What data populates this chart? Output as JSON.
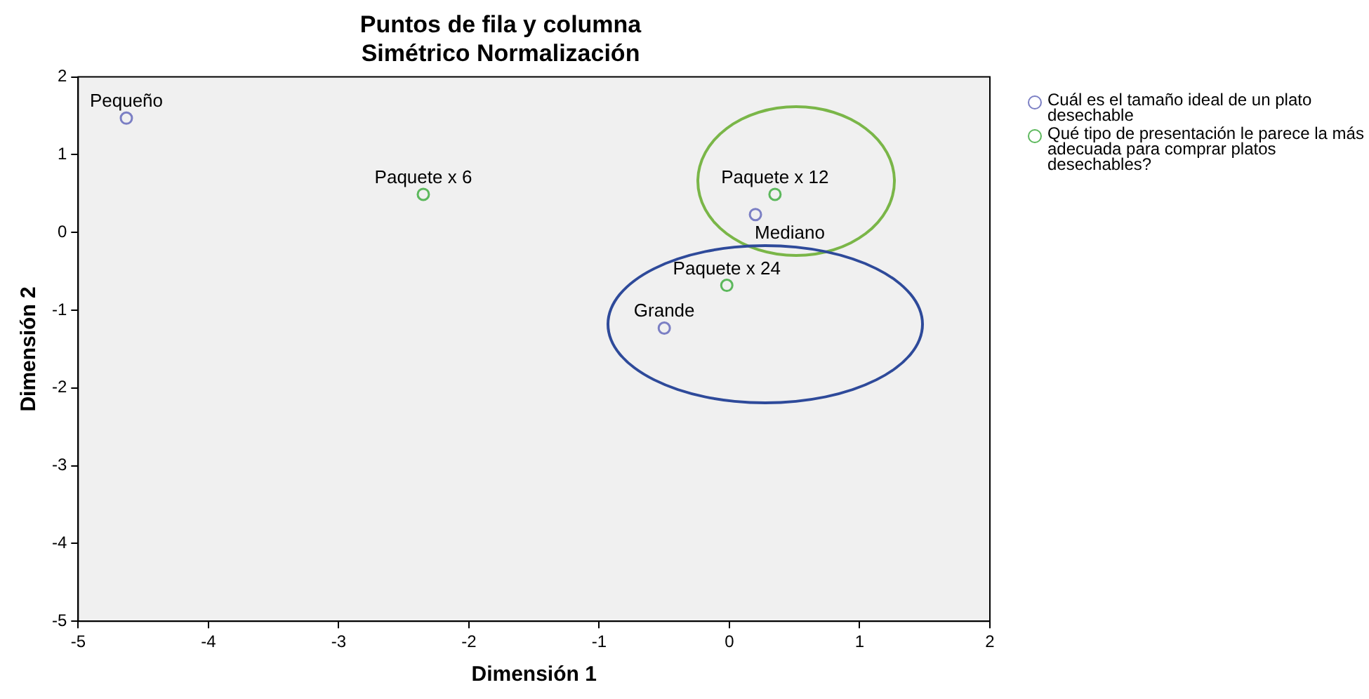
{
  "chart_data": {
    "type": "scatter",
    "title": "Puntos de fila y columna",
    "subtitle": "Simétrico Normalización",
    "xlabel": "Dimensión 1",
    "ylabel": "Dimensión 2",
    "series": [
      {
        "name": "Cuál es el tamaño ideal de un plato desechable",
        "color": "#7b7fc4",
        "x": [
          -4.63,
          0.2,
          -0.5
        ],
        "values": [
          1.47,
          0.23,
          -1.23
        ]
      },
      {
        "name": "Qué tipo de presentación le parece la más adecuada para comprar platos desechables?",
        "color": "#5cb85c",
        "x": [
          -2.35,
          0.35,
          -0.02
        ],
        "values": [
          0.49,
          0.49,
          -0.68
        ]
      }
    ],
    "annotations": [
      {
        "text": "Pequeño",
        "x": -4.63,
        "y": 1.47
      },
      {
        "text": "Paquete x 6",
        "x": -2.35,
        "y": 0.49
      },
      {
        "text": "Paquete x 12",
        "x": 0.35,
        "y": 0.49
      },
      {
        "text": "Mediano",
        "x": 0.2,
        "y": 0.23
      },
      {
        "text": "Paquete x 24",
        "x": -0.02,
        "y": -0.68
      },
      {
        "text": "Grande",
        "x": -0.5,
        "y": -1.23
      }
    ],
    "xlim": [
      -5,
      2
    ],
    "xticks": [
      -5,
      -4,
      -3,
      -2,
      -1,
      0,
      1,
      2
    ],
    "ylim": [
      -5,
      2
    ],
    "yticks": [
      -5,
      -4,
      -3,
      -2,
      -1,
      0,
      1,
      2
    ],
    "grid": false,
    "legend": "top right",
    "marker": "circle"
  }
}
